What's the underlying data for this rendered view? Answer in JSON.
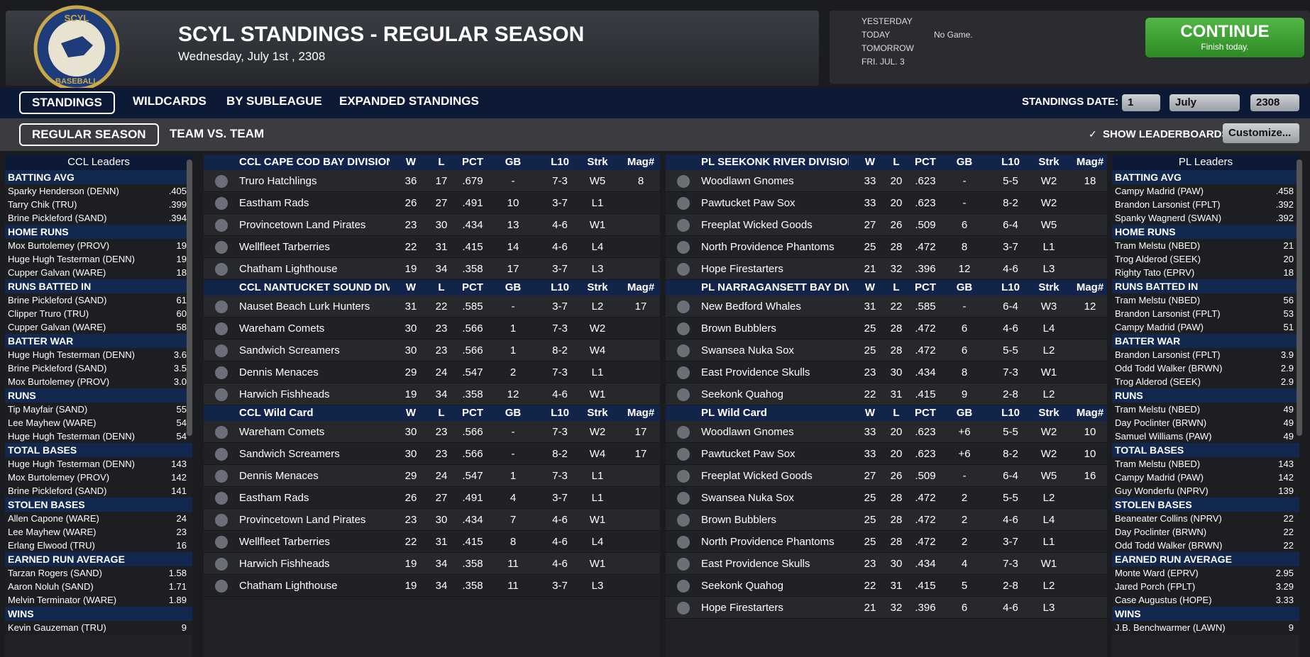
{
  "header": {
    "logo_top": "SCYL",
    "logo_bottom": "BASEBALL",
    "title": "SCYL STANDINGS - REGULAR SEASON",
    "date": "Wednesday, July 1st , 2308"
  },
  "schedule": {
    "days": [
      "YESTERDAY",
      "TODAY",
      "TOMORROW",
      "FRI. JUL. 3"
    ],
    "today_game": "No Game."
  },
  "continue_button": {
    "label": "CONTINUE",
    "sublabel": "Finish today."
  },
  "tabs": [
    "STANDINGS",
    "WILDCARDS",
    "BY SUBLEAGUE",
    "EXPANDED STANDINGS"
  ],
  "standings_date": {
    "label": "STANDINGS DATE:",
    "day": "1",
    "month": "July",
    "year": "2308"
  },
  "subtabs": [
    "REGULAR SEASON",
    "TEAM VS. TEAM"
  ],
  "show_leaderboards": "SHOW LEADERBOARDS",
  "customize": "Customize...",
  "columns": [
    "W",
    "L",
    "PCT",
    "GB",
    "L10",
    "Strk",
    "Mag#"
  ],
  "leaders": [
    {
      "title": "CCL Leaders",
      "categories": [
        {
          "name": "BATTING AVG",
          "entries": [
            [
              "Sparky Henderson (DENN)",
              ".405"
            ],
            [
              "Tarry Chik (TRU)",
              ".399"
            ],
            [
              "Brine Pickleford (SAND)",
              ".394"
            ]
          ]
        },
        {
          "name": "HOME RUNS",
          "entries": [
            [
              "Mox Burtolemey (PROV)",
              "19"
            ],
            [
              "Huge Hugh Testerman (DENN)",
              "19"
            ],
            [
              "Cupper Galvan (WARE)",
              "18"
            ]
          ]
        },
        {
          "name": "RUNS BATTED IN",
          "entries": [
            [
              "Brine Pickleford (SAND)",
              "61"
            ],
            [
              "Clipper Truro (TRU)",
              "60"
            ],
            [
              "Cupper Galvan (WARE)",
              "58"
            ]
          ]
        },
        {
          "name": "BATTER WAR",
          "entries": [
            [
              "Huge Hugh Testerman (DENN)",
              "3.6"
            ],
            [
              "Brine Pickleford (SAND)",
              "3.5"
            ],
            [
              "Mox Burtolemey (PROV)",
              "3.0"
            ]
          ]
        },
        {
          "name": "RUNS",
          "entries": [
            [
              "Tip Mayfair (SAND)",
              "55"
            ],
            [
              "Lee Mayhew (WARE)",
              "54"
            ],
            [
              "Huge Hugh Testerman (DENN)",
              "54"
            ]
          ]
        },
        {
          "name": "TOTAL BASES",
          "entries": [
            [
              "Huge Hugh Testerman (DENN)",
              "143"
            ],
            [
              "Mox Burtolemey (PROV)",
              "142"
            ],
            [
              "Brine Pickleford (SAND)",
              "141"
            ]
          ]
        },
        {
          "name": "STOLEN BASES",
          "entries": [
            [
              "Allen Capone (WARE)",
              "24"
            ],
            [
              "Lee Mayhew (WARE)",
              "23"
            ],
            [
              "Erlang Elwood (TRU)",
              "16"
            ]
          ]
        },
        {
          "name": "EARNED RUN AVERAGE",
          "entries": [
            [
              "Tarzan Rogers (SAND)",
              "1.58"
            ],
            [
              "Aaron Noluh (SAND)",
              "1.71"
            ],
            [
              "Melvin Terminator (WARE)",
              "1.89"
            ]
          ]
        },
        {
          "name": "WINS",
          "entries": [
            [
              "Kevin Gauzeman (TRU)",
              "9"
            ]
          ]
        }
      ]
    },
    {
      "title": "PL Leaders",
      "categories": [
        {
          "name": "BATTING AVG",
          "entries": [
            [
              "Campy Madrid (PAW)",
              ".458"
            ],
            [
              "Brandon Larsonist (FPLT)",
              ".392"
            ],
            [
              "Spanky Wagnerd (SWAN)",
              ".392"
            ]
          ]
        },
        {
          "name": "HOME RUNS",
          "entries": [
            [
              "Tram Melstu (NBED)",
              "21"
            ],
            [
              "Trog Alderod (SEEK)",
              "20"
            ],
            [
              "Righty Tato (EPRV)",
              "18"
            ]
          ]
        },
        {
          "name": "RUNS BATTED IN",
          "entries": [
            [
              "Tram Melstu (NBED)",
              "56"
            ],
            [
              "Brandon Larsonist (FPLT)",
              "53"
            ],
            [
              "Campy Madrid (PAW)",
              "51"
            ]
          ]
        },
        {
          "name": "BATTER WAR",
          "entries": [
            [
              "Brandon Larsonist (FPLT)",
              "3.9"
            ],
            [
              "Odd Todd Walker (BRWN)",
              "2.9"
            ],
            [
              "Trog Alderod (SEEK)",
              "2.9"
            ]
          ]
        },
        {
          "name": "RUNS",
          "entries": [
            [
              "Tram Melstu (NBED)",
              "49"
            ],
            [
              "Day Poclinter (BRWN)",
              "49"
            ],
            [
              "Samuel Williams (PAW)",
              "49"
            ]
          ]
        },
        {
          "name": "TOTAL BASES",
          "entries": [
            [
              "Tram Melstu (NBED)",
              "143"
            ],
            [
              "Campy Madrid (PAW)",
              "142"
            ],
            [
              "Guy Wonderfu (NPRV)",
              "139"
            ]
          ]
        },
        {
          "name": "STOLEN BASES",
          "entries": [
            [
              "Beaneater Collins (NPRV)",
              "22"
            ],
            [
              "Day Poclinter (BRWN)",
              "22"
            ],
            [
              "Odd Todd Walker (BRWN)",
              "22"
            ]
          ]
        },
        {
          "name": "EARNED RUN AVERAGE",
          "entries": [
            [
              "Monte Ward (EPRV)",
              "2.95"
            ],
            [
              "Jared Porch (FPLT)",
              "3.29"
            ],
            [
              "Case Augustus (HOPE)",
              "3.33"
            ]
          ]
        },
        {
          "name": "WINS",
          "entries": [
            [
              "J.B. Benchwarmer (LAWN)",
              "9"
            ]
          ]
        }
      ]
    }
  ],
  "standings": [
    [
      {
        "title": "CCL CAPE COD BAY DIVISION",
        "rows": [
          [
            "Truro Hatchlings",
            "36",
            "17",
            ".679",
            "-",
            "7-3",
            "W5",
            "8"
          ],
          [
            "Eastham Rads",
            "26",
            "27",
            ".491",
            "10",
            "3-7",
            "L1",
            null
          ],
          [
            "Provincetown Land Pirates",
            "23",
            "30",
            ".434",
            "13",
            "4-6",
            "W1",
            null
          ],
          [
            "Wellfleet Tarberries",
            "22",
            "31",
            ".415",
            "14",
            "4-6",
            "L4",
            null
          ],
          [
            "Chatham Lighthouse",
            "19",
            "34",
            ".358",
            "17",
            "3-7",
            "L3",
            null
          ]
        ]
      },
      {
        "title": "CCL NANTUCKET SOUND DIVISIC",
        "rows": [
          [
            "Nauset Beach Lurk Hunters",
            "31",
            "22",
            ".585",
            "-",
            "3-7",
            "L2",
            "17"
          ],
          [
            "Wareham Comets",
            "30",
            "23",
            ".566",
            "1",
            "7-3",
            "W2",
            null
          ],
          [
            "Sandwich Screamers",
            "30",
            "23",
            ".566",
            "1",
            "8-2",
            "W4",
            null
          ],
          [
            "Dennis Menaces",
            "29",
            "24",
            ".547",
            "2",
            "7-3",
            "L1",
            null
          ],
          [
            "Harwich Fishheads",
            "19",
            "34",
            ".358",
            "12",
            "4-6",
            "W1",
            null
          ]
        ]
      },
      {
        "title": "CCL  Wild Card",
        "rows": [
          [
            "Wareham Comets",
            "30",
            "23",
            ".566",
            "-",
            "7-3",
            "W2",
            "17"
          ],
          [
            "Sandwich Screamers",
            "30",
            "23",
            ".566",
            "-",
            "8-2",
            "W4",
            "17"
          ],
          [
            "Dennis Menaces",
            "29",
            "24",
            ".547",
            "1",
            "7-3",
            "L1",
            null
          ],
          [
            "Eastham Rads",
            "26",
            "27",
            ".491",
            "4",
            "3-7",
            "L1",
            null
          ],
          [
            "Provincetown Land Pirates",
            "23",
            "30",
            ".434",
            "7",
            "4-6",
            "W1",
            null
          ],
          [
            "Wellfleet Tarberries",
            "22",
            "31",
            ".415",
            "8",
            "4-6",
            "L4",
            null
          ],
          [
            "Harwich Fishheads",
            "19",
            "34",
            ".358",
            "11",
            "4-6",
            "W1",
            null
          ],
          [
            "Chatham Lighthouse",
            "19",
            "34",
            ".358",
            "11",
            "3-7",
            "L3",
            null
          ]
        ]
      }
    ],
    [
      {
        "title": "PL SEEKONK RIVER DIVISION",
        "rows": [
          [
            "Woodlawn Gnomes",
            "33",
            "20",
            ".623",
            "-",
            "5-5",
            "W2",
            "18"
          ],
          [
            "Pawtucket Paw Sox",
            "33",
            "20",
            ".623",
            "-",
            "8-2",
            "W2",
            null
          ],
          [
            "Freeplat Wicked Goods",
            "27",
            "26",
            ".509",
            "6",
            "6-4",
            "W5",
            null
          ],
          [
            "North Providence Phantoms",
            "25",
            "28",
            ".472",
            "8",
            "3-7",
            "L1",
            null
          ],
          [
            "Hope Firestarters",
            "21",
            "32",
            ".396",
            "12",
            "4-6",
            "L3",
            null
          ]
        ]
      },
      {
        "title": "PL NARRAGANSETT BAY DIVISI",
        "rows": [
          [
            "New Bedford Whales",
            "31",
            "22",
            ".585",
            "-",
            "6-4",
            "W3",
            "12"
          ],
          [
            "Brown Bubblers",
            "25",
            "28",
            ".472",
            "6",
            "4-6",
            "L4",
            null
          ],
          [
            "Swansea Nuka Sox",
            "25",
            "28",
            ".472",
            "6",
            "5-5",
            "L2",
            null
          ],
          [
            "East Providence Skulls",
            "23",
            "30",
            ".434",
            "8",
            "7-3",
            "W1",
            null
          ],
          [
            "Seekonk Quahog",
            "22",
            "31",
            ".415",
            "9",
            "2-8",
            "L2",
            null
          ]
        ]
      },
      {
        "title": "PL  Wild Card",
        "rows": [
          [
            "Woodlawn Gnomes",
            "33",
            "20",
            ".623",
            "+6",
            "5-5",
            "W2",
            "10"
          ],
          [
            "Pawtucket Paw Sox",
            "33",
            "20",
            ".623",
            "+6",
            "8-2",
            "W2",
            "10"
          ],
          [
            "Freeplat Wicked Goods",
            "27",
            "26",
            ".509",
            "-",
            "6-4",
            "W5",
            "16"
          ],
          [
            "Swansea Nuka Sox",
            "25",
            "28",
            ".472",
            "2",
            "5-5",
            "L2",
            null
          ],
          [
            "Brown Bubblers",
            "25",
            "28",
            ".472",
            "2",
            "4-6",
            "L4",
            null
          ],
          [
            "North Providence Phantoms",
            "25",
            "28",
            ".472",
            "2",
            "3-7",
            "L1",
            null
          ],
          [
            "East Providence Skulls",
            "23",
            "30",
            ".434",
            "4",
            "7-3",
            "W1",
            null
          ],
          [
            "Seekonk Quahog",
            "22",
            "31",
            ".415",
            "5",
            "2-8",
            "L2",
            null
          ],
          [
            "Hope Firestarters",
            "21",
            "32",
            ".396",
            "6",
            "4-6",
            "L3",
            null
          ]
        ]
      }
    ]
  ]
}
